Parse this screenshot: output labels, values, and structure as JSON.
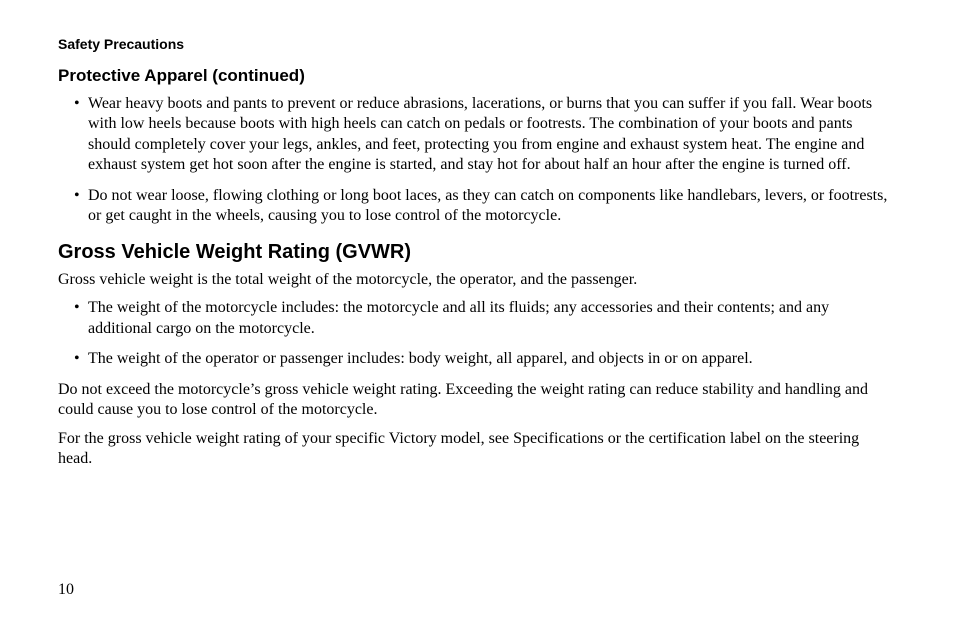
{
  "runningHead": "Safety Precautions",
  "protective": {
    "heading": "Protective Apparel (continued)",
    "bullets": [
      "Wear heavy boots and pants to prevent or reduce abrasions, lacerations, or burns that you can suffer if you fall. Wear boots with low heels because boots with high heels can catch on pedals or footrests. The combination of your boots and pants should completely cover your legs, ankles, and feet, protecting you from engine and exhaust system heat. The engine and exhaust system get hot soon after the engine is started, and stay hot for about half an hour after the engine is turned off.",
      "Do not wear loose, flowing clothing or long boot laces, as they can catch on components like handlebars, levers, or footrests, or get caught in the wheels, causing you to lose control of the motorcycle."
    ]
  },
  "gvwr": {
    "heading": "Gross Vehicle Weight Rating (GVWR)",
    "intro": "Gross vehicle weight is the total weight of the motorcycle, the operator, and the passenger.",
    "bullets": [
      "The weight of the motorcycle includes: the motorcycle and all its fluids; any accessories and their contents; and any additional cargo on the motorcycle.",
      "The weight of the operator or passenger includes: body weight, all apparel, and objects in or on apparel."
    ],
    "para1": "Do not exceed the motorcycle’s gross vehicle weight rating. Exceeding the weight rating can reduce stability and handling and could cause you to lose control of the motorcycle.",
    "para2": "For the gross vehicle weight rating of your specific Victory model, see Specifications or the certification label on the steering head."
  },
  "pageNumber": "10"
}
